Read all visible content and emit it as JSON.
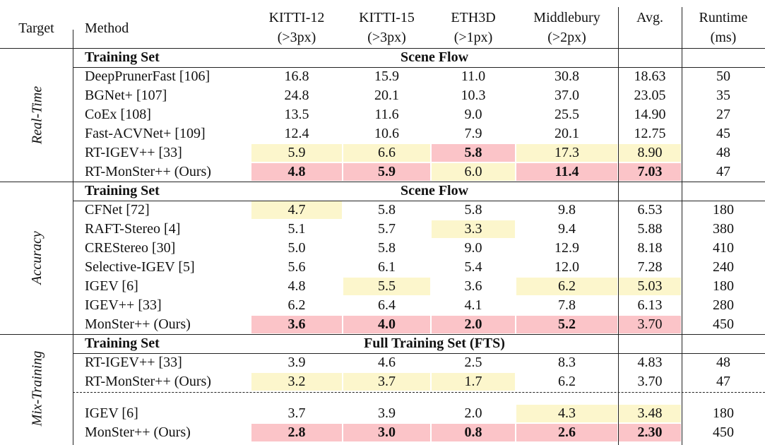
{
  "table": {
    "header": {
      "target": "Target",
      "method": "Method",
      "columns": [
        {
          "name": "KITTI-12",
          "metric": "(>3px)"
        },
        {
          "name": "KITTI-15",
          "metric": "(>3px)"
        },
        {
          "name": "ETH3D",
          "metric": "(>1px)"
        },
        {
          "name": "Middlebury",
          "metric": "(>2px)"
        },
        {
          "name": "Avg."
        },
        {
          "name": "Runtime",
          "metric": "(ms)"
        }
      ]
    },
    "sections": [
      {
        "target": "Real-Time",
        "training_label": "Training Set",
        "training_set": "Scene Flow",
        "groups": [
          [
            {
              "method": "DeepPrunerFast [106]",
              "cells": [
                "16.8",
                "15.9",
                "11.0",
                "30.8",
                "18.63",
                "50"
              ]
            },
            {
              "method": "BGNet+ [107]",
              "cells": [
                "24.8",
                "20.1",
                "10.3",
                "37.0",
                "23.05",
                "35"
              ]
            },
            {
              "method": "CoEx [108]",
              "cells": [
                "13.5",
                "11.6",
                "9.0",
                "25.5",
                "14.90",
                "27"
              ]
            },
            {
              "method": "Fast-ACVNet+ [109]",
              "cells": [
                "12.4",
                "10.6",
                "7.9",
                "20.1",
                "12.75",
                "45"
              ]
            },
            {
              "method": "RT-IGEV++ [33]",
              "cells": [
                {
                  "text": "5.9",
                  "fill": "#fcf6cc"
                },
                {
                  "text": "6.6",
                  "fill": "#fcf6cc"
                },
                {
                  "text": "5.8",
                  "fill": "#fbc4c8",
                  "bold": true
                },
                {
                  "text": "17.3",
                  "fill": "#fcf6cc"
                },
                {
                  "text": "8.90",
                  "fill": "#fcf6cc"
                },
                "48"
              ]
            },
            {
              "method": "RT-MonSter++ (Ours)",
              "cells": [
                {
                  "text": "4.8",
                  "fill": "#fbc4c8",
                  "bold": true
                },
                {
                  "text": "5.9",
                  "fill": "#fbc4c8",
                  "bold": true
                },
                {
                  "text": "6.0",
                  "fill": "#fcf6cc"
                },
                {
                  "text": "11.4",
                  "fill": "#fbc4c8",
                  "bold": true
                },
                {
                  "text": "7.03",
                  "fill": "#fbc4c8",
                  "bold": true
                },
                "47"
              ]
            }
          ]
        ]
      },
      {
        "target": "Accuracy",
        "training_label": "Training Set",
        "training_set": "Scene Flow",
        "groups": [
          [
            {
              "method": "CFNet [72]",
              "cells": [
                {
                  "text": "4.7",
                  "fill": "#fcf6cc"
                },
                "5.8",
                "5.8",
                "9.8",
                "6.53",
                "180"
              ]
            },
            {
              "method": "RAFT-Stereo [4]",
              "cells": [
                "5.1",
                "5.7",
                {
                  "text": "3.3",
                  "fill": "#fcf6cc"
                },
                "9.4",
                "5.88",
                "380"
              ]
            },
            {
              "method": "CREStereo [30]",
              "cells": [
                "5.0",
                "5.8",
                "9.0",
                "12.9",
                "8.18",
                "410"
              ]
            },
            {
              "method": "Selective-IGEV [5]",
              "cells": [
                "5.6",
                "6.1",
                "5.4",
                "12.0",
                "7.28",
                "240"
              ]
            },
            {
              "method": "IGEV [6]",
              "cells": [
                "4.8",
                {
                  "text": "5.5",
                  "fill": "#fcf6cc"
                },
                "3.6",
                {
                  "text": "6.2",
                  "fill": "#fcf6cc"
                },
                {
                  "text": "5.03",
                  "fill": "#fcf6cc"
                },
                "180"
              ]
            },
            {
              "method": "IGEV++ [33]",
              "cells": [
                "6.2",
                "6.4",
                "4.1",
                "7.8",
                "6.13",
                "280"
              ]
            },
            {
              "method": "MonSter++ (Ours)",
              "cells": [
                {
                  "text": "3.6",
                  "fill": "#fbc4c8",
                  "bold": true
                },
                {
                  "text": "4.0",
                  "fill": "#fbc4c8",
                  "bold": true
                },
                {
                  "text": "2.0",
                  "fill": "#fbc4c8",
                  "bold": true
                },
                {
                  "text": "5.2",
                  "fill": "#fbc4c8",
                  "bold": true
                },
                {
                  "text": "3.70",
                  "fill": "#fbc4c8"
                },
                "450"
              ]
            }
          ]
        ]
      },
      {
        "target": "Mix-Training",
        "training_label": "Training Set",
        "training_set": "Full Training Set (FTS)",
        "groups": [
          [
            {
              "method": "RT-IGEV++ [33]",
              "cells": [
                "3.9",
                "4.6",
                "2.5",
                "8.3",
                "4.83",
                "48"
              ]
            },
            {
              "method": "RT-MonSter++ (Ours)",
              "cells": [
                {
                  "text": "3.2",
                  "fill": "#fcf6cc"
                },
                {
                  "text": "3.7",
                  "fill": "#fcf6cc"
                },
                {
                  "text": "1.7",
                  "fill": "#fcf6cc"
                },
                "6.2",
                "3.70",
                "47"
              ]
            }
          ],
          [
            {
              "method": "IGEV [6]",
              "cells": [
                "3.7",
                "3.9",
                "2.0",
                {
                  "text": "4.3",
                  "fill": "#fcf6cc"
                },
                {
                  "text": "3.48",
                  "fill": "#fcf6cc"
                },
                "180"
              ]
            },
            {
              "method": "MonSter++ (Ours)",
              "cells": [
                {
                  "text": "2.8",
                  "fill": "#fbc4c8",
                  "bold": true
                },
                {
                  "text": "3.0",
                  "fill": "#fbc4c8",
                  "bold": true
                },
                {
                  "text": "0.8",
                  "fill": "#fbc4c8",
                  "bold": true
                },
                {
                  "text": "2.6",
                  "fill": "#fbc4c8",
                  "bold": true
                },
                {
                  "text": "2.30",
                  "fill": "#fbc4c8",
                  "bold": true
                },
                "450"
              ]
            }
          ]
        ]
      }
    ]
  }
}
